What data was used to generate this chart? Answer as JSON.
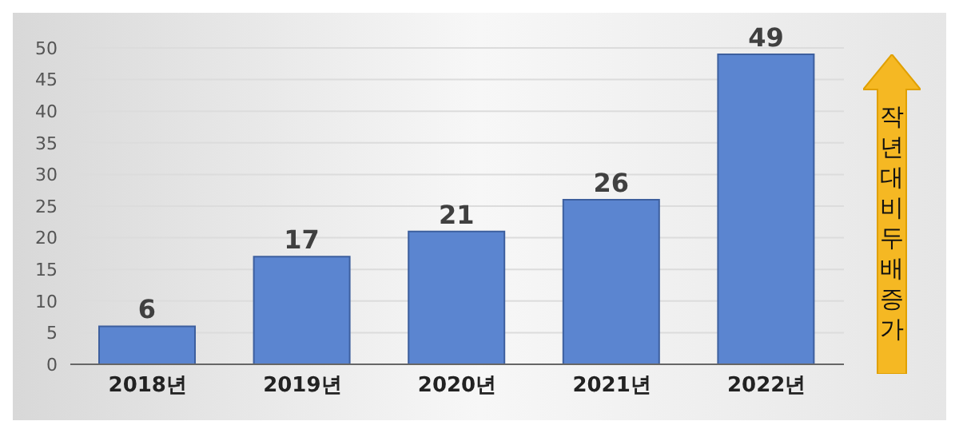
{
  "chart_data": {
    "type": "bar",
    "categories": [
      "2018년",
      "2019년",
      "2020년",
      "2021년",
      "2022년"
    ],
    "values": [
      6,
      17,
      21,
      26,
      49
    ],
    "color": "#5b85d0",
    "ylim": [
      0,
      50
    ],
    "yticks": [
      0,
      5,
      10,
      15,
      20,
      25,
      30,
      35,
      40,
      45,
      50
    ],
    "grid": "y",
    "data_labels": true,
    "annotations": [
      "작년대비두배증가"
    ]
  }
}
